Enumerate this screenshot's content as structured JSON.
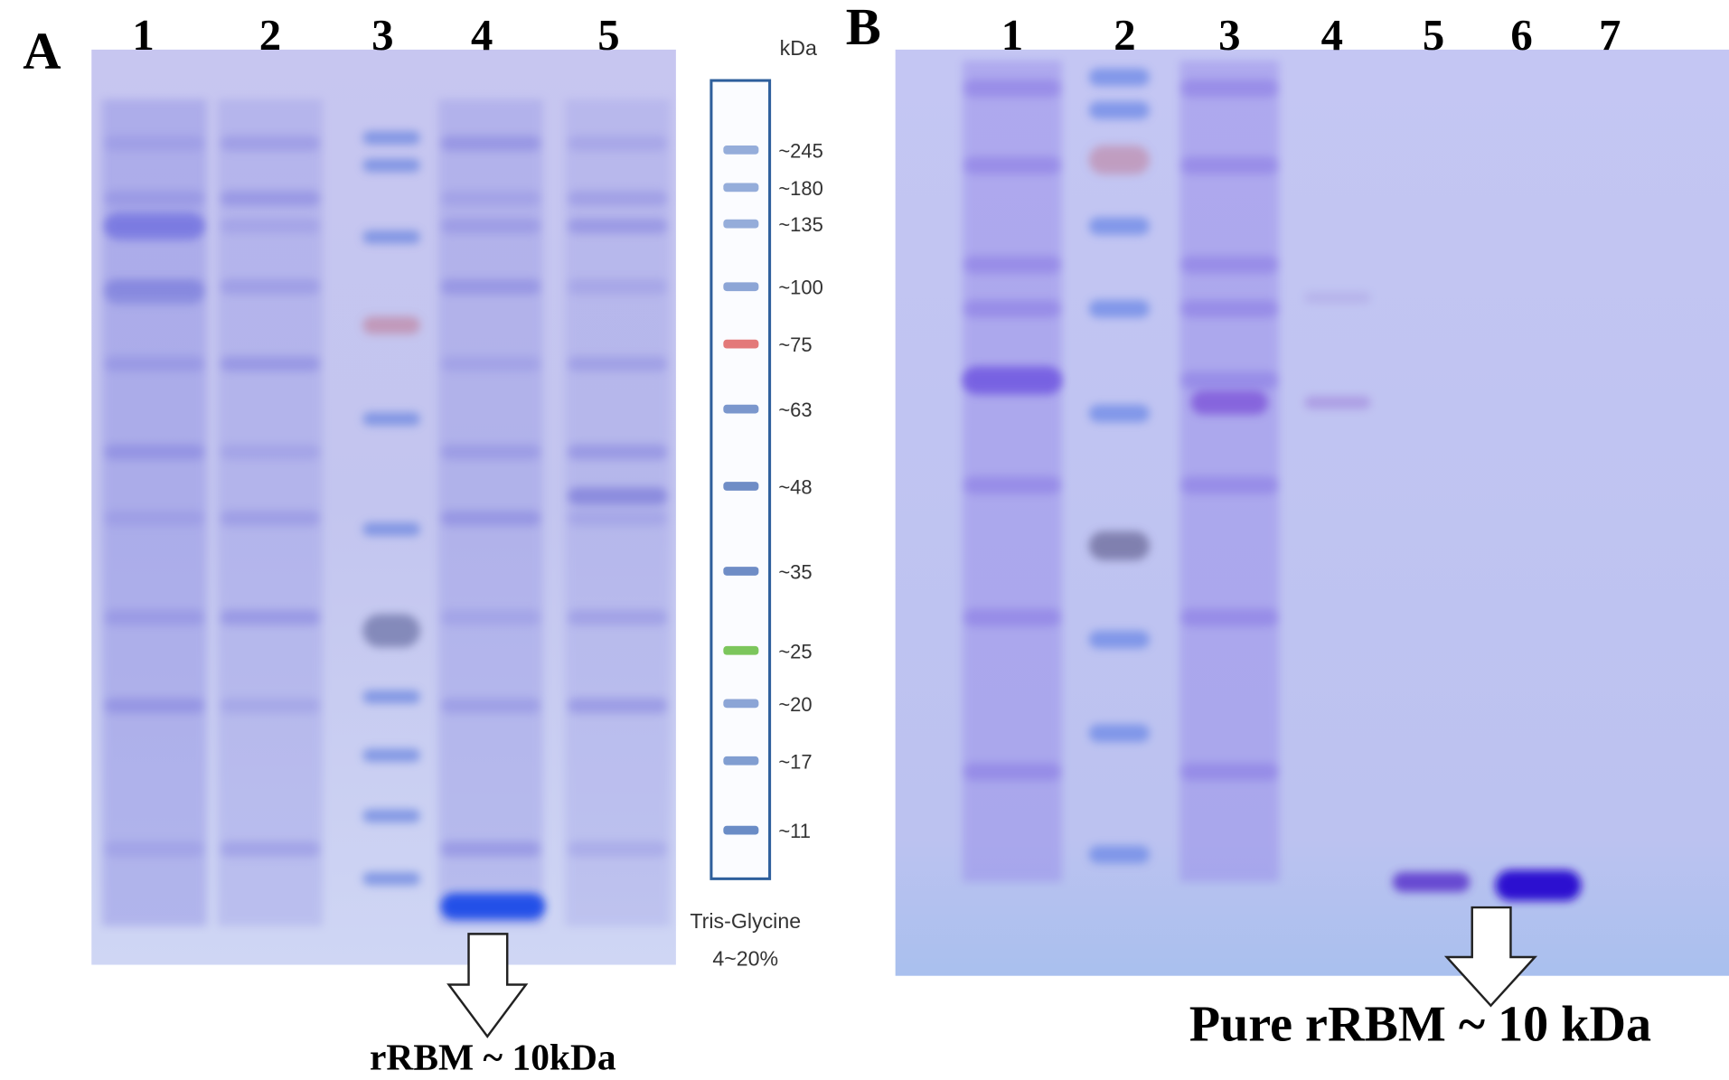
{
  "panel_a": {
    "label": "A",
    "lanes": [
      "1",
      "2",
      "3",
      "4",
      "5"
    ],
    "marker": {
      "unit": "kDa",
      "bands": [
        "~245",
        "~180",
        "~135",
        "~100",
        "~75",
        "~63",
        "~48",
        "~35",
        "~25",
        "~20",
        "~17",
        "~11"
      ],
      "gel_type": "Tris-Glycine",
      "gradient": "4~20%"
    },
    "annotation": "rRBM ~ 10kDa"
  },
  "panel_b": {
    "label": "B",
    "lanes": [
      "1",
      "2",
      "3",
      "4",
      "5",
      "6",
      "7"
    ],
    "annotation": "Pure rRBM ~ 10 kDa"
  }
}
